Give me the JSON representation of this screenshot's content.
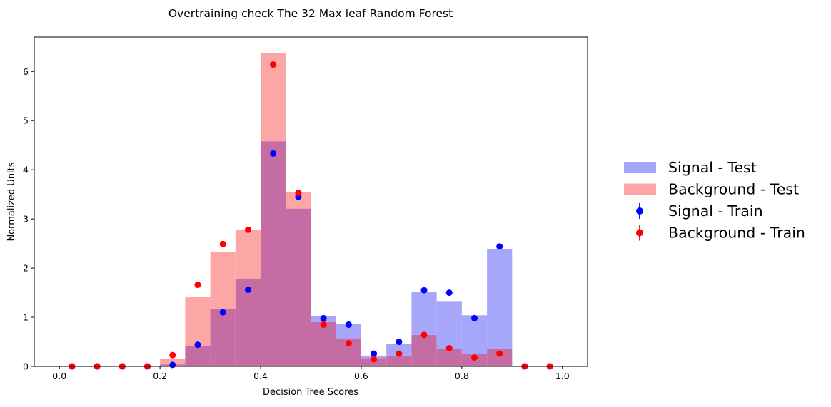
{
  "chart_data": {
    "type": "bar",
    "title": "Overtraining check The 32 Max leaf Random Forest",
    "xlabel": "Decision Tree Scores",
    "ylabel": "Normalized Units",
    "xlim": [
      -0.05,
      1.05
    ],
    "ylim": [
      0,
      6.7
    ],
    "xticks": [
      "0.0",
      "0.2",
      "0.4",
      "0.6",
      "0.8",
      "1.0"
    ],
    "yticks": [
      "0",
      "1",
      "2",
      "3",
      "4",
      "5",
      "6"
    ],
    "grid": false,
    "legend_placement": "outside-right",
    "bin_edges": [
      0.0,
      0.05,
      0.1,
      0.15,
      0.2,
      0.25,
      0.3,
      0.35,
      0.4,
      0.45,
      0.5,
      0.55,
      0.6,
      0.65,
      0.7,
      0.75,
      0.8,
      0.85,
      0.9,
      0.95,
      1.0
    ],
    "bin_centers": [
      0.025,
      0.075,
      0.125,
      0.175,
      0.225,
      0.275,
      0.325,
      0.375,
      0.425,
      0.475,
      0.525,
      0.575,
      0.625,
      0.675,
      0.725,
      0.775,
      0.825,
      0.875,
      0.925,
      0.975
    ],
    "histograms": [
      {
        "name": "Signal - Test",
        "color": "#a6a6fb",
        "values": [
          0,
          0,
          0,
          0,
          0.04,
          0.42,
          1.17,
          1.77,
          4.58,
          3.21,
          1.03,
          0.87,
          0.22,
          0.46,
          1.51,
          1.33,
          1.04,
          2.38,
          0,
          0
        ]
      },
      {
        "name": "Background - Test",
        "color": "#fca6a6",
        "values": [
          0,
          0,
          0,
          0,
          0.16,
          1.41,
          2.32,
          2.77,
          6.38,
          3.54,
          0.9,
          0.57,
          0.17,
          0.22,
          0.64,
          0.35,
          0.25,
          0.35,
          0,
          0
        ]
      }
    ],
    "overlap_color": "#c66ca4",
    "points": [
      {
        "name": "Signal - Train",
        "color": "#0000ff",
        "values": [
          0,
          0,
          0,
          0,
          0.03,
          0.44,
          1.1,
          1.56,
          4.33,
          3.45,
          0.98,
          0.85,
          0.26,
          0.5,
          1.55,
          1.5,
          0.98,
          2.44,
          0,
          0
        ]
      },
      {
        "name": "Background - Train",
        "color": "#ff0000",
        "values": [
          0,
          0,
          0,
          0,
          0.23,
          1.66,
          2.49,
          2.78,
          6.14,
          3.53,
          0.85,
          0.47,
          0.145,
          0.26,
          0.64,
          0.37,
          0.18,
          0.26,
          0,
          0
        ]
      }
    ]
  }
}
